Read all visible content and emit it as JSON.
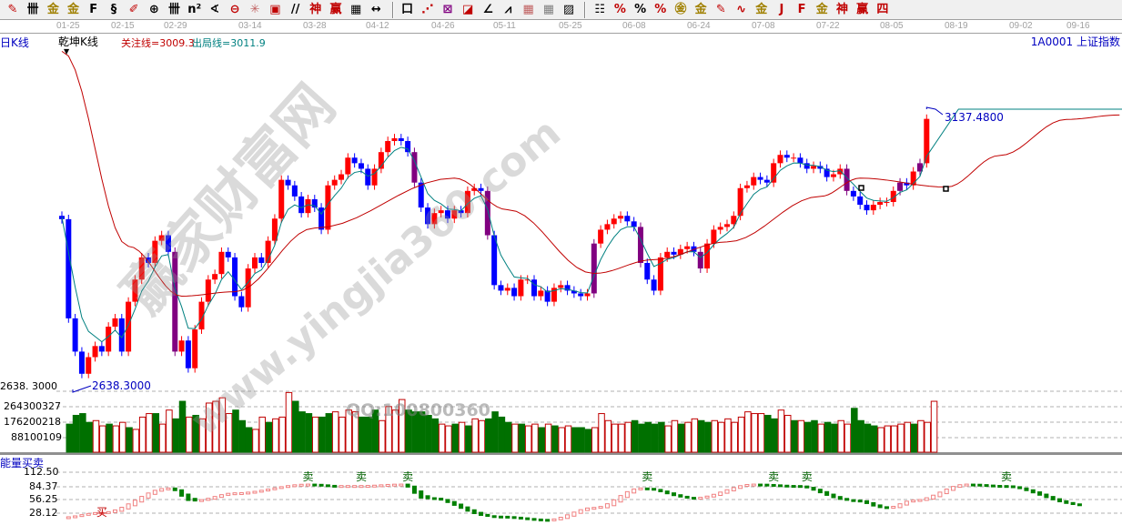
{
  "toolbar": {
    "icons": [
      {
        "name": "pen-icon",
        "glyph": "✎",
        "color": "#c00000"
      },
      {
        "name": "parallel-lines-icon",
        "glyph": "卌",
        "color": "#000000"
      },
      {
        "name": "gold-icon",
        "glyph": "金",
        "color": "#a08000"
      },
      {
        "name": "gold-split-icon",
        "glyph": "金",
        "color": "#a08000"
      },
      {
        "name": "fibonacci-icon",
        "glyph": "F",
        "color": "#000000"
      },
      {
        "name": "spiral-icon",
        "glyph": "§",
        "color": "#000000"
      },
      {
        "name": "pen-ruler-icon",
        "glyph": "✐",
        "color": "#c00000"
      },
      {
        "name": "circle-grid-icon",
        "glyph": "⊕",
        "color": "#000000"
      },
      {
        "name": "channel-icon",
        "glyph": "卌",
        "color": "#000000"
      },
      {
        "name": "square-n-icon",
        "glyph": "n²",
        "color": "#000000"
      },
      {
        "name": "angle-icon",
        "glyph": "∢",
        "color": "#000000"
      },
      {
        "name": "target-icon",
        "glyph": "⊖",
        "color": "#c00000"
      },
      {
        "name": "star-icon",
        "glyph": "✳",
        "color": "#c06060"
      },
      {
        "name": "square-target-icon",
        "glyph": "▣",
        "color": "#c00000"
      },
      {
        "name": "slash-lines-icon",
        "glyph": "//",
        "color": "#000000"
      },
      {
        "name": "shen-icon",
        "glyph": "神",
        "color": "#c00000"
      },
      {
        "name": "ying-icon",
        "glyph": "赢",
        "color": "#c00000"
      },
      {
        "name": "ruler-icon",
        "glyph": "▦",
        "color": "#000000"
      },
      {
        "name": "measure-icon",
        "glyph": "↔",
        "color": "#000000"
      },
      {
        "name": "separator",
        "glyph": "|",
        "color": "#888"
      },
      {
        "name": "box-icon",
        "glyph": "口",
        "color": "#000000"
      },
      {
        "name": "fan-icon",
        "glyph": "⋰",
        "color": "#c00000"
      },
      {
        "name": "box-diagonal-icon",
        "glyph": "⊠",
        "color": "#800080"
      },
      {
        "name": "box-red-icon",
        "glyph": "◪",
        "color": "#c00000"
      },
      {
        "name": "angle-line-icon",
        "glyph": "∠",
        "color": "#000000"
      },
      {
        "name": "wave-icon",
        "glyph": "⩘",
        "color": "#000000"
      },
      {
        "name": "grid-icon",
        "glyph": "▦",
        "color": "#c06060"
      },
      {
        "name": "grid-2-icon",
        "glyph": "▦",
        "color": "#808080"
      },
      {
        "name": "hatch-icon",
        "glyph": "▨",
        "color": "#000000"
      },
      {
        "name": "separator",
        "glyph": "|",
        "color": "#888"
      },
      {
        "name": "list-icon",
        "glyph": "☷",
        "color": "#000000"
      },
      {
        "name": "percent-line-icon",
        "glyph": "%",
        "color": "#c00000"
      },
      {
        "name": "percent-icon",
        "glyph": "%",
        "color": "#000000"
      },
      {
        "name": "percent-equal-icon",
        "glyph": "%",
        "color": "#c00000"
      },
      {
        "name": "gold-circle-icon",
        "glyph": "㊎",
        "color": "#a08000"
      },
      {
        "name": "gold-lines-icon",
        "glyph": "金",
        "color": "#a08000"
      },
      {
        "name": "pen-bar-icon",
        "glyph": "✎",
        "color": "#c00000"
      },
      {
        "name": "ag-wave-icon",
        "glyph": "∿",
        "color": "#c00000"
      },
      {
        "name": "gold-red-icon",
        "glyph": "金",
        "color": "#a08000"
      },
      {
        "name": "j-line-icon",
        "glyph": "J",
        "color": "#c00000"
      },
      {
        "name": "f-line-icon",
        "glyph": "F",
        "color": "#c00000"
      },
      {
        "name": "gold-line-icon",
        "glyph": "金",
        "color": "#a08000"
      },
      {
        "name": "shen-line-icon",
        "glyph": "神",
        "color": "#c00000"
      },
      {
        "name": "ying-line-icon",
        "glyph": "赢",
        "color": "#c00000"
      },
      {
        "name": "si-line-icon",
        "glyph": "四",
        "color": "#c00000"
      }
    ]
  },
  "date_axis": [
    "01-25",
    "02-15",
    "02-29",
    "03-14",
    "03-28",
    "04-12",
    "04-26",
    "05-11",
    "05-25",
    "06-08",
    "06-24",
    "07-08",
    "07-22",
    "08-05",
    "08-19",
    "09-02",
    "09-16"
  ],
  "header": {
    "period": "日K线",
    "indicator_name": "乾坤K线",
    "attention_line": "关注线=3009.3",
    "exit_line": "出局线=3011.9",
    "security": "1A0001  上证指数"
  },
  "watermark": {
    "site_cn": "赢家财富网",
    "site_url": "www.yingjia360.com",
    "qq": "QQ:100800360"
  },
  "colors": {
    "up": "#ff0000",
    "down": "#0000ff",
    "special": "#800080",
    "vol_up": "#c00000",
    "vol_down": "#007000",
    "fast_line": "#008080",
    "slow_line": "#c00000",
    "energy_up": "#f08080",
    "energy_down": "#008000"
  },
  "chart_data": [
    {
      "type": "candlestick",
      "title": "乾坤K线",
      "price_labels": {
        "low": "2638.3000",
        "high": "3137.4800",
        "axis_low": "2638. 3000"
      },
      "ylim": [
        2638.3,
        3137.48
      ],
      "first_open": 2945,
      "closes": [
        2939,
        2760,
        2700,
        2660,
        2690,
        2710,
        2700,
        2745,
        2760,
        2700,
        2790,
        2830,
        2870,
        2860,
        2900,
        2910,
        2880,
        2700,
        2720,
        2670,
        2740,
        2790,
        2830,
        2840,
        2880,
        2870,
        2800,
        2780,
        2850,
        2870,
        2860,
        2900,
        2940,
        3010,
        3000,
        2980,
        2950,
        2975,
        2960,
        2920,
        3000,
        3010,
        3020,
        3050,
        3040,
        3030,
        3000,
        3030,
        3060,
        3080,
        3085,
        3080,
        3060,
        3005,
        2960,
        2930,
        2950,
        2955,
        2940,
        2955,
        2950,
        2990,
        2995,
        2990,
        2910,
        2820,
        2810,
        2815,
        2800,
        2830,
        2830,
        2800,
        2810,
        2790,
        2815,
        2820,
        2810,
        2805,
        2800,
        2805,
        2895,
        2920,
        2930,
        2940,
        2945,
        2935,
        2925,
        2860,
        2830,
        2810,
        2870,
        2880,
        2875,
        2885,
        2890,
        2880,
        2850,
        2895,
        2920,
        2925,
        2930,
        2945,
        2995,
        3000,
        3015,
        3010,
        3005,
        3040,
        3055,
        3050,
        3050,
        3040,
        3030,
        3035,
        3030,
        3015,
        3020,
        3030,
        2990,
        2980,
        2965,
        2955,
        2965,
        2970,
        2970,
        2990,
        3005,
        3000,
        3025,
        3040,
        3120
      ],
      "special_candles": [
        17,
        53,
        64,
        80,
        87,
        96,
        118,
        126,
        129
      ],
      "slow_line": [
        [
          0,
          3242
        ],
        [
          10,
          2890
        ],
        [
          18,
          2800
        ],
        [
          26,
          2808
        ],
        [
          38,
          2923
        ],
        [
          59,
          3013
        ],
        [
          67,
          2956
        ],
        [
          80,
          2841
        ],
        [
          89,
          2866
        ],
        [
          100,
          2898
        ],
        [
          114,
          2980
        ],
        [
          120,
          3013
        ],
        [
          133,
          2997
        ],
        [
          141,
          3054
        ],
        [
          151,
          3119
        ],
        [
          159,
          3127
        ]
      ]
    },
    {
      "type": "bar",
      "ylabels": [
        "264300327",
        "176200218",
        "88100109"
      ],
      "ticks": [
        264300327,
        176200218,
        88100109
      ],
      "values": [
        160000000.0,
        210000000.0,
        220000000.0,
        170000000.0,
        180000000.0,
        150000000.0,
        160000000.0,
        150000000.0,
        170000000.0,
        140000000.0,
        130000000.0,
        200000000.0,
        220000000.0,
        220000000.0,
        160000000.0,
        240000000.0,
        190000000.0,
        290000000.0,
        200000000.0,
        210000000.0,
        190000000.0,
        280000000.0,
        290000000.0,
        310000000.0,
        220000000.0,
        240000000.0,
        180000000.0,
        140000000.0,
        130000000.0,
        200000000.0,
        170000000.0,
        190000000.0,
        200000000.0,
        340000000.0,
        290000000.0,
        230000000.0,
        220000000.0,
        200000000.0,
        200000000.0,
        220000000.0,
        230000000.0,
        200000000.0,
        240000000.0,
        230000000.0,
        200000000.0,
        200000000.0,
        240000000.0,
        180000000.0,
        260000000.0,
        240000000.0,
        300000000.0,
        240000000.0,
        230000000.0,
        230000000.0,
        210000000.0,
        190000000.0,
        160000000.0,
        150000000.0,
        160000000.0,
        170000000.0,
        150000000.0,
        190000000.0,
        180000000.0,
        190000000.0,
        230000000.0,
        200000000.0,
        170000000.0,
        160000000.0,
        160000000.0,
        150000000.0,
        160000000.0,
        140000000.0,
        160000000.0,
        150000000.0,
        140000000.0,
        150000000.0,
        140000000.0,
        140000000.0,
        130000000.0,
        140000000.0,
        220000000.0,
        180000000.0,
        160000000.0,
        160000000.0,
        170000000.0,
        180000000.0,
        160000000.0,
        170000000.0,
        160000000.0,
        170000000.0,
        150000000.0,
        180000000.0,
        160000000.0,
        170000000.0,
        190000000.0,
        180000000.0,
        170000000.0,
        180000000.0,
        170000000.0,
        190000000.0,
        170000000.0,
        200000000.0,
        230000000.0,
        220000000.0,
        220000000.0,
        210000000.0,
        190000000.0,
        240000000.0,
        210000000.0,
        180000000.0,
        180000000.0,
        170000000.0,
        180000000.0,
        160000000.0,
        170000000.0,
        160000000.0,
        180000000.0,
        160000000.0,
        250000000.0,
        180000000.0,
        160000000.0,
        150000000.0,
        140000000.0,
        150000000.0,
        150000000.0,
        160000000.0,
        170000000.0,
        160000000.0,
        180000000.0,
        170000000.0,
        290000000.0
      ],
      "ylim": [
        0,
        350000000.0
      ]
    },
    {
      "type": "line",
      "title": "能量买卖",
      "ylabels": [
        "112.50",
        "84.37",
        "56.25",
        "28.12"
      ],
      "ticks": [
        112.5,
        84.37,
        56.25,
        28.12
      ],
      "points": [
        [
          0,
          20
        ],
        [
          6,
          30
        ],
        [
          16,
          80
        ],
        [
          20,
          55
        ],
        [
          26,
          70
        ],
        [
          37,
          88
        ],
        [
          41,
          85
        ],
        [
          45,
          85
        ],
        [
          51,
          88
        ],
        [
          55,
          60
        ],
        [
          65,
          22
        ],
        [
          73,
          15
        ],
        [
          80,
          40
        ],
        [
          87,
          80
        ],
        [
          95,
          60
        ],
        [
          104,
          88
        ],
        [
          110,
          85
        ],
        [
          119,
          55
        ],
        [
          124,
          40
        ],
        [
          128,
          55
        ],
        [
          136,
          88
        ],
        [
          141,
          85
        ],
        [
          154,
          45
        ]
      ],
      "signals": [
        {
          "index": 6,
          "label": "买"
        },
        {
          "index": 37,
          "label": "卖"
        },
        {
          "index": 45,
          "label": "卖"
        },
        {
          "index": 52,
          "label": "卖"
        },
        {
          "index": 88,
          "label": "卖"
        },
        {
          "index": 107,
          "label": "卖"
        },
        {
          "index": 112,
          "label": "卖"
        },
        {
          "index": 142,
          "label": "卖"
        }
      ]
    }
  ]
}
